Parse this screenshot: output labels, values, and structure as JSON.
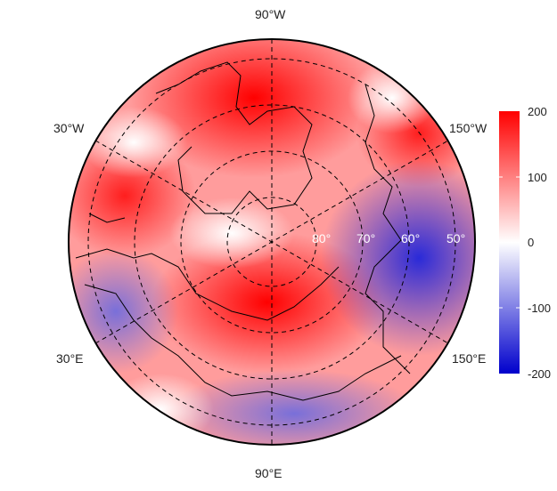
{
  "map": {
    "projection": "north polar stereographic",
    "longitude_labels": {
      "top": "90°W",
      "bottom": "90°E",
      "upper_left": "30°W",
      "upper_right": "150°W",
      "lower_left": "30°E",
      "lower_right": "150°E"
    },
    "latitude_labels": [
      "80°",
      "70°",
      "60°",
      "50°"
    ]
  },
  "colorbar": {
    "ticks": [
      "200",
      "100",
      "0",
      "-100",
      "-200"
    ],
    "range": [
      -200,
      200
    ],
    "colors": {
      "max": "#ff0000",
      "mid": "#ffffff",
      "min": "#0000cc"
    }
  }
}
